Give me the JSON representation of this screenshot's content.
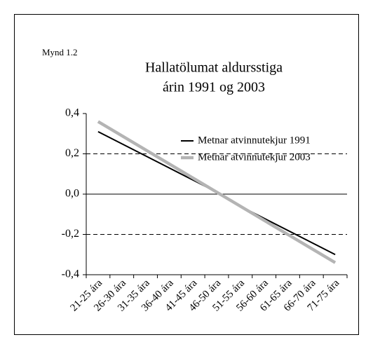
{
  "chart_data": {
    "type": "line",
    "label": "Mynd 1.2",
    "title": [
      "Hallatölumat aldursstiga",
      "árin 1991 og 2003"
    ],
    "categories": [
      "21-25 ára",
      "26-30 ára",
      "31-35 ára",
      "36-40 ára",
      "41-45 ára",
      "46-50 ára",
      "51-55 ára",
      "56-60 ára",
      "61-65 ára",
      "66-70 ára",
      "71-75 ára"
    ],
    "series": [
      {
        "name": "Metnar atvinnutekjur 1991",
        "color": "#000000",
        "width": 2,
        "values": [
          0.31,
          0.25,
          0.19,
          0.13,
          0.07,
          0.01,
          -0.06,
          -0.12,
          -0.18,
          -0.24,
          -0.3
        ]
      },
      {
        "name": "Metnar atvinnutekjur 2003",
        "color": "#b4b4b4",
        "width": 4.5,
        "values": [
          0.36,
          0.29,
          0.22,
          0.15,
          0.08,
          0.01,
          -0.06,
          -0.13,
          -0.2,
          -0.27,
          -0.34
        ]
      }
    ],
    "ylim": [
      -0.4,
      0.4
    ],
    "yticks": [
      {
        "value": -0.4,
        "label": "-0,4"
      },
      {
        "value": -0.2,
        "label": "-0,2"
      },
      {
        "value": 0,
        "label": "0,0"
      },
      {
        "value": 0.2,
        "label": "0,2"
      },
      {
        "value": 0.4,
        "label": "0,4"
      }
    ],
    "grid": true,
    "legend": "top-right"
  }
}
